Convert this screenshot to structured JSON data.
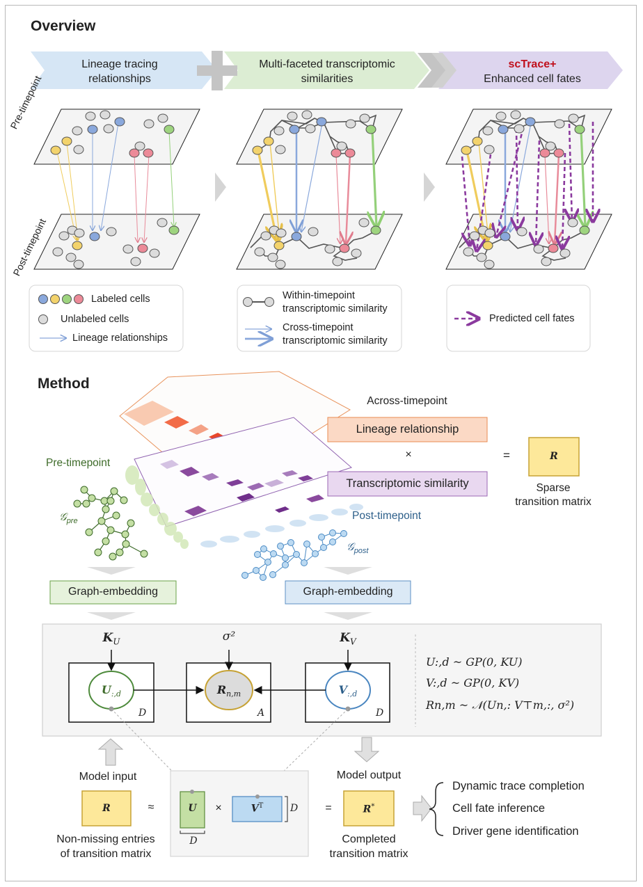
{
  "overview": {
    "title": "Overview",
    "banner": {
      "lineage": "Lineage tracing\nrelationships",
      "multi": "Multi-faceted transcriptomic\nsimilarities",
      "scTrace_name": "scTrace+",
      "scTrace_sub": "Enhanced cell fates"
    },
    "pre_label": "Pre-timepoint",
    "post_label": "Post-timepoint",
    "legend1": {
      "labeled": "Labeled cells",
      "unlabeled": "Unlabeled cells",
      "lineage": "Lineage relationships"
    },
    "legend2": {
      "within": "Within-timepoint\ntranscriptomic similarity",
      "cross": "Cross-timepoint\ntranscriptomic similarity"
    },
    "legend3": {
      "predicted": "Predicted cell fates"
    },
    "colors": {
      "yellow": "#f3d36c",
      "blue": "#8aa8dc",
      "green": "#9ed47f",
      "red": "#ec8a98",
      "grey": "#dcdcdc",
      "purple": "#8b3a9e"
    }
  },
  "method": {
    "title": "Method",
    "across": "Across-timepoint",
    "lineage_box": "Lineage relationship",
    "times": "×",
    "trans_box": "Transcriptomic similarity",
    "equals": "=",
    "R": "R",
    "sparse": "Sparse\ntransition matrix",
    "pre_label": "Pre-timepoint",
    "post_label": "Post-timepoint",
    "g_pre": "𝒢",
    "g_pre_sub": "pre",
    "g_post": "𝒢",
    "g_post_sub": "post",
    "graph_embed_left": "Graph-embedding",
    "graph_embed_right": "Graph-embedding",
    "model": {
      "KU": "K",
      "KU_sub": "U",
      "sigma": "σ²",
      "KV": "K",
      "KV_sub": "V",
      "U_node": "U",
      "U_sub": ":,d",
      "R_node": "R",
      "R_sub": "n,m",
      "V_node": "V",
      "V_sub": ":,d",
      "plate_D1": "D",
      "plate_A": "A",
      "plate_D2": "D",
      "eq1": "U:,d ~ GP(0, KU)",
      "eq2": "V:,d ~ GP(0, KV)",
      "eq3": "Rn,m ~ 𝒩(Un,: V⊤m,:, σ²)"
    },
    "model_input": "Model input",
    "model_output": "Model output",
    "approx": "≈",
    "mult": "×",
    "eq": "=",
    "U_mat": "U",
    "VT_mat": "V",
    "VT_sup": "T",
    "D_side": "D",
    "D_bottom": "D",
    "R_star": "R",
    "R_star_sup": "*",
    "non_missing": "Non-missing entries\nof transition matrix",
    "completed": "Completed\ntransition matrix",
    "outputs": [
      "Dynamic trace completion",
      "Cell fate inference",
      "Driver gene identification"
    ]
  }
}
